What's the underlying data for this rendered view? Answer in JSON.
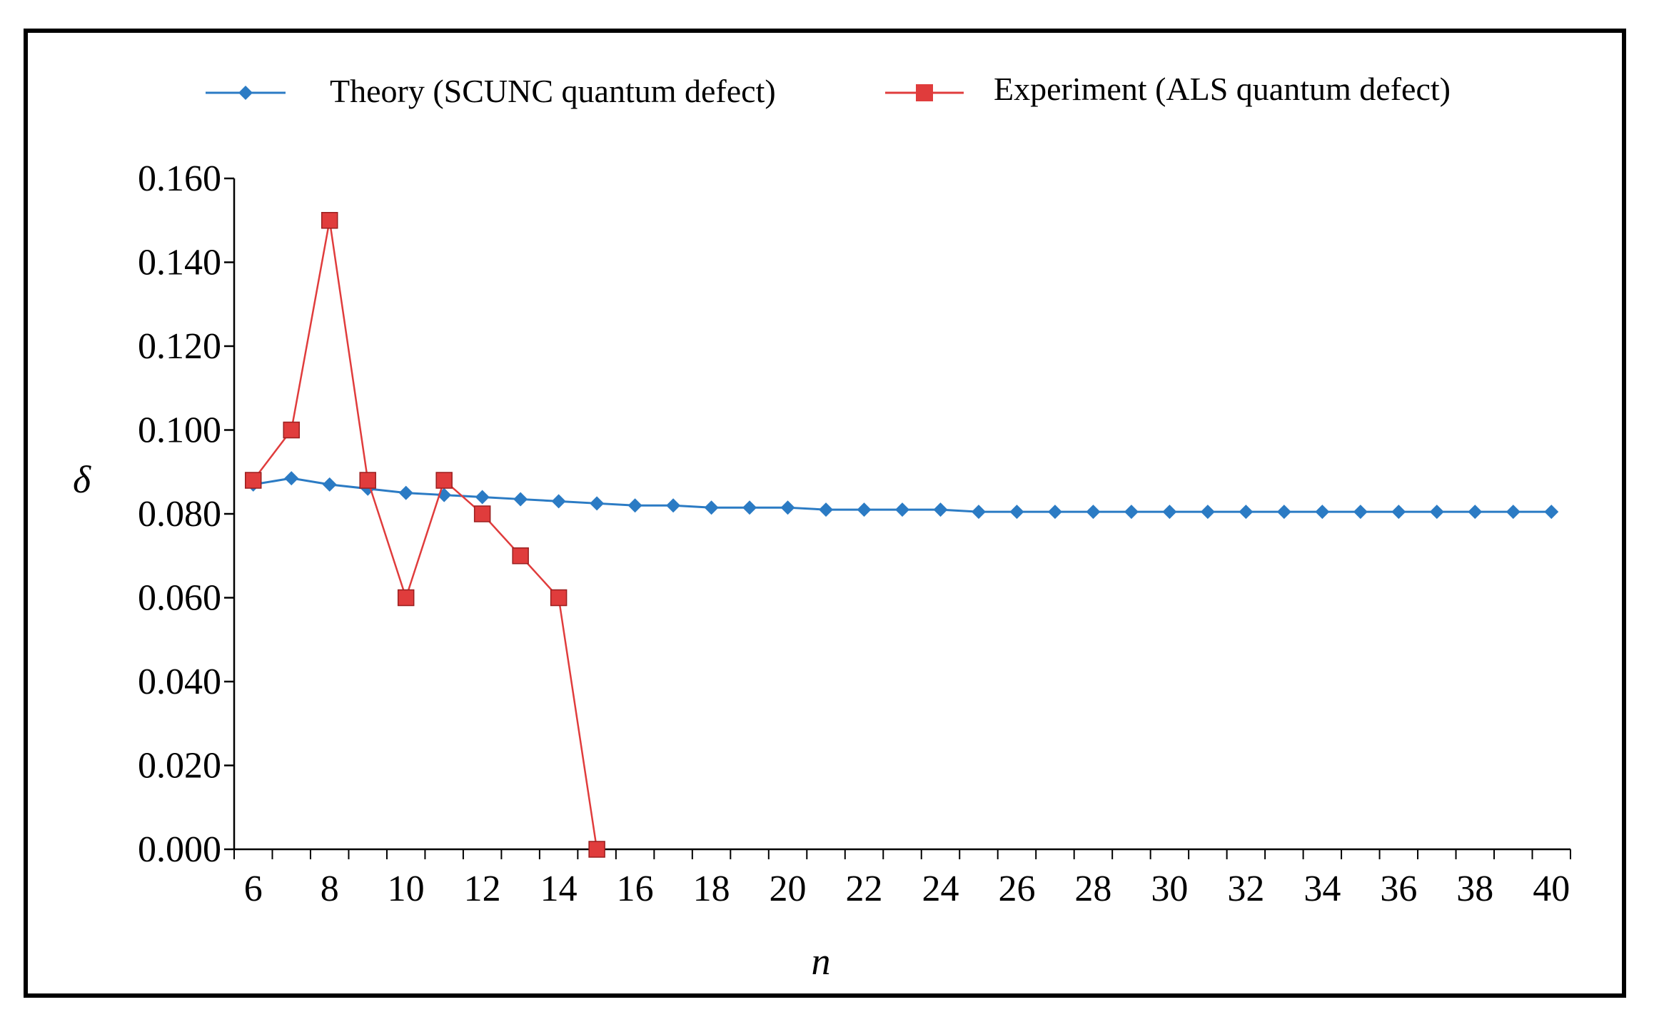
{
  "chart_data": {
    "type": "line",
    "title": "",
    "xlabel": "n",
    "ylabel": "δ",
    "xlim": [
      5.5,
      40.5
    ],
    "ylim": [
      0.0,
      0.16
    ],
    "x_ticks": [
      6,
      8,
      10,
      12,
      14,
      16,
      18,
      20,
      22,
      24,
      26,
      28,
      30,
      32,
      34,
      36,
      38,
      40
    ],
    "y_ticks": [
      "0.000",
      "0.020",
      "0.040",
      "0.060",
      "0.080",
      "0.100",
      "0.120",
      "0.140",
      "0.160"
    ],
    "grid": false,
    "legend_position": "top",
    "series": [
      {
        "name": "Theory (SCUNC quantum defect)",
        "color": "#2b7bc4",
        "marker": "diamond",
        "x": [
          6,
          7,
          8,
          9,
          10,
          11,
          12,
          13,
          14,
          15,
          16,
          17,
          18,
          19,
          20,
          21,
          22,
          23,
          24,
          25,
          26,
          27,
          28,
          29,
          30,
          31,
          32,
          33,
          34,
          35,
          36,
          37,
          38,
          39,
          40
        ],
        "values": [
          0.087,
          0.0885,
          0.087,
          0.086,
          0.085,
          0.0845,
          0.084,
          0.0835,
          0.083,
          0.0825,
          0.082,
          0.082,
          0.0815,
          0.0815,
          0.0815,
          0.081,
          0.081,
          0.081,
          0.081,
          0.0805,
          0.0805,
          0.0805,
          0.0805,
          0.0805,
          0.0805,
          0.0805,
          0.0805,
          0.0805,
          0.0805,
          0.0805,
          0.0805,
          0.0805,
          0.0805,
          0.0805,
          0.0805
        ]
      },
      {
        "name": "Experiment (ALS quantum defect)",
        "color": "#e03c3c",
        "marker": "square",
        "x": [
          6,
          7,
          8,
          9,
          10,
          11,
          12,
          13,
          14,
          15
        ],
        "values": [
          0.088,
          0.1,
          0.15,
          0.088,
          0.06,
          0.088,
          0.08,
          0.07,
          0.06,
          0.0
        ]
      }
    ]
  }
}
